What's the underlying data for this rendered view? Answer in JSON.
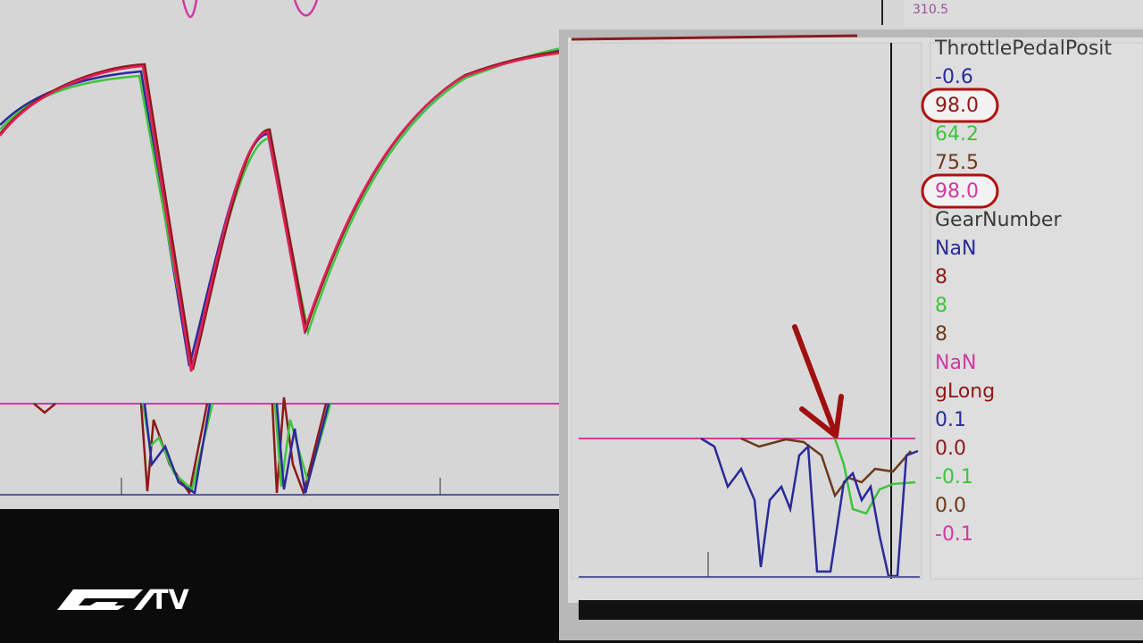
{
  "top_panel": {
    "value": "310.5",
    "color": "#9b4fa0"
  },
  "readout": {
    "groups": [
      {
        "label": "ThrottlePedalPosit",
        "label_color": "#3a3a3a",
        "values": [
          {
            "text": "-0.6",
            "color": "#2a2a9a",
            "highlighted": false
          },
          {
            "text": "98.0",
            "color": "#8b1a1a",
            "highlighted": true
          },
          {
            "text": "64.2",
            "color": "#3ec43e",
            "highlighted": false
          },
          {
            "text": "75.5",
            "color": "#6b3a1a",
            "highlighted": false
          },
          {
            "text": "98.0",
            "color": "#d03aa0",
            "highlighted": true
          }
        ]
      },
      {
        "label": "GearNumber",
        "label_color": "#3a3a3a",
        "values": [
          {
            "text": "NaN",
            "color": "#2a2a9a",
            "highlighted": false
          },
          {
            "text": "8",
            "color": "#8b1a1a",
            "highlighted": false
          },
          {
            "text": "8",
            "color": "#3ec43e",
            "highlighted": false
          },
          {
            "text": "8",
            "color": "#6b3a1a",
            "highlighted": false
          },
          {
            "text": "NaN",
            "color": "#d03aa0",
            "highlighted": false
          }
        ]
      },
      {
        "label": "gLong",
        "label_color": "#8b1a1a",
        "values": [
          {
            "text": "0.1",
            "color": "#2a2a9a",
            "highlighted": false
          },
          {
            "text": "0.0",
            "color": "#8b1a1a",
            "highlighted": false
          },
          {
            "text": "-0.1",
            "color": "#3ec43e",
            "highlighted": false
          },
          {
            "text": "0.0",
            "color": "#6b3a1a",
            "highlighted": false
          },
          {
            "text": "-0.1",
            "color": "#d03aa0",
            "highlighted": false
          }
        ]
      }
    ]
  },
  "logo": {
    "text": "TV"
  }
}
